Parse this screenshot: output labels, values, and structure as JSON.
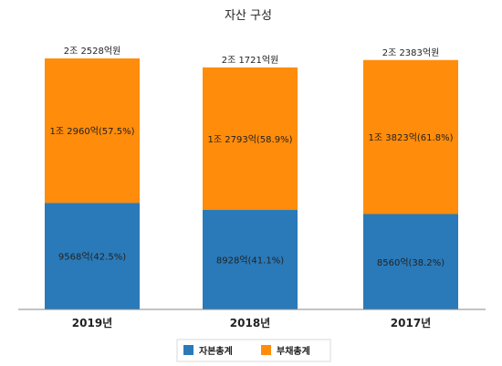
{
  "chart_data": {
    "type": "bar",
    "stacked": true,
    "title": "자산 구성",
    "categories": [
      "2019년",
      "2018년",
      "2017년"
    ],
    "series": [
      {
        "name": "자본총계",
        "values": [
          9568,
          8928,
          8560
        ],
        "labels": [
          "9568억(42.5%)",
          "8928억(41.1%)",
          "8560억(38.2%)"
        ],
        "color": "#2a7ab9"
      },
      {
        "name": "부채총계",
        "values": [
          12960,
          12793,
          13823
        ],
        "labels": [
          "1조 2960억(57.5%)",
          "1조 2793억(58.9%)",
          "1조 3823억(61.8%)"
        ],
        "color": "#ff8c0a"
      }
    ],
    "totals": [
      22528,
      21721,
      22383
    ],
    "total_labels": [
      "2조 2528억원",
      "2조 1721억원",
      "2조 2383억원"
    ],
    "ylim": [
      0,
      22528
    ],
    "grid": false,
    "legend_position": "bottom"
  }
}
